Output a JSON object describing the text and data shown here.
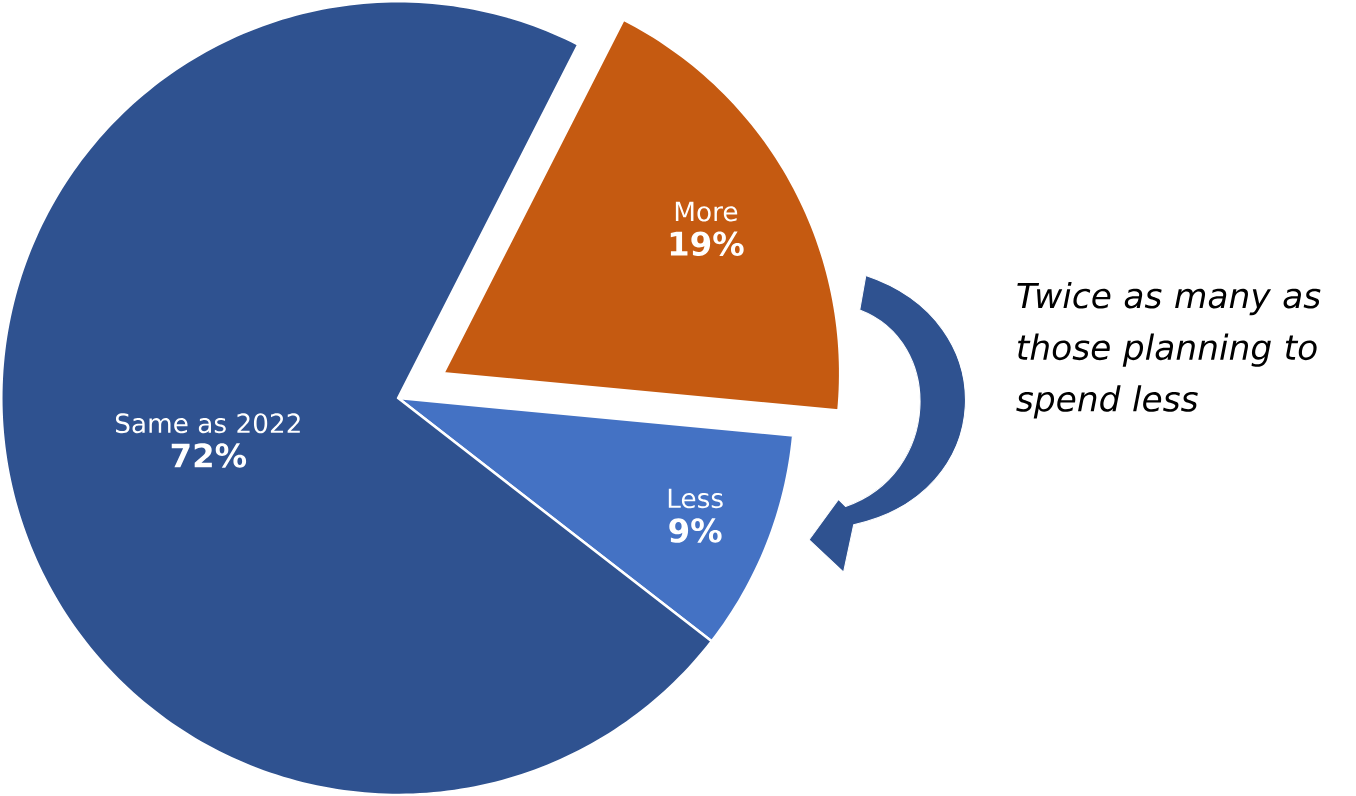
{
  "chart_data": {
    "type": "pie",
    "categories": [
      "More",
      "Less",
      "Same as 2022"
    ],
    "values": [
      19,
      9,
      72
    ],
    "value_labels": [
      "19%",
      "9%",
      "72%"
    ],
    "colors": [
      "#c55a11",
      "#4472c4",
      "#2f5290"
    ],
    "annotations": [
      "Twice as many as those planning to spend less"
    ]
  }
}
